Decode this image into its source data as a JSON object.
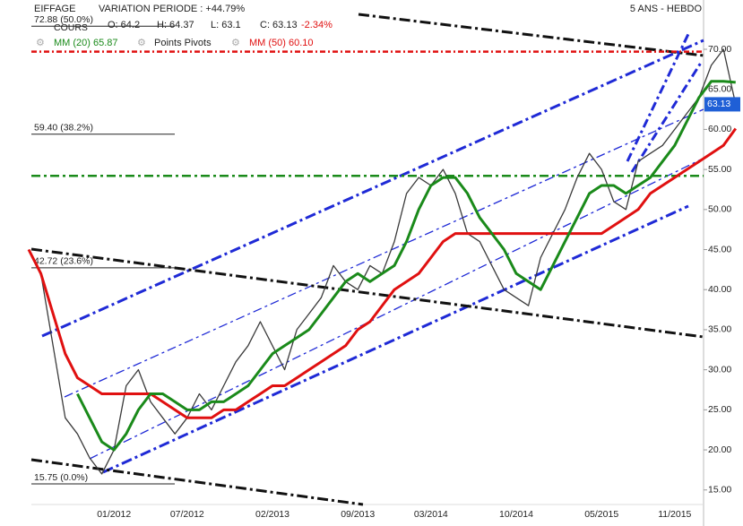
{
  "chart_data": {
    "type": "line",
    "title": "EIFFAGE",
    "subtitle": "VARIATION PERIODE : +44.79%",
    "period": "5 ANS - HEBDO",
    "ohlc": [
      "O: 64.2",
      "H: 64.37",
      "L: 63.1",
      "C: 63.13"
    ],
    "change": "-2.34%",
    "pivot_label": "Points Pivots",
    "last_price": 63.13,
    "categories": [
      null,
      null,
      null,
      null,
      null,
      null,
      null,
      "01/2012",
      null,
      null,
      null,
      null,
      null,
      "07/2012",
      null,
      null,
      null,
      null,
      null,
      null,
      "02/2013",
      null,
      null,
      null,
      null,
      null,
      null,
      "09/2013",
      null,
      null,
      null,
      null,
      null,
      "03/2014",
      null,
      null,
      null,
      null,
      null,
      null,
      "10/2014",
      null,
      null,
      null,
      null,
      null,
      null,
      "05/2015",
      null,
      null,
      null,
      null,
      null,
      "11/2015",
      null,
      null,
      null,
      null,
      null
    ],
    "series": [
      {
        "name": "COURS",
        "color": "#3a3a3a",
        "values": [
          45,
          42,
          33,
          24,
          22,
          19,
          17,
          20,
          28,
          30,
          26,
          24,
          22,
          24,
          27,
          25,
          28,
          31,
          33,
          36,
          33,
          30,
          35,
          37,
          39,
          43,
          41,
          40,
          43,
          42,
          46,
          52,
          54,
          53,
          55,
          52,
          47,
          46,
          43,
          40,
          39,
          38,
          44,
          47,
          50,
          54,
          57,
          55,
          51,
          50,
          56,
          57,
          58,
          60,
          62,
          64,
          68,
          70,
          63.13
        ]
      },
      {
        "name": "MM (20) 65.87",
        "color": "#1a8a1a",
        "values": [
          null,
          null,
          null,
          null,
          27,
          24,
          21,
          20,
          22,
          25,
          27,
          27,
          26,
          25,
          25,
          26,
          26,
          27,
          28,
          30,
          32,
          33,
          34,
          35,
          37,
          39,
          41,
          42,
          41,
          42,
          43,
          46,
          50,
          53,
          54,
          54,
          52,
          49,
          47,
          45,
          42,
          41,
          40,
          43,
          46,
          49,
          52,
          53,
          53,
          52,
          53,
          54,
          56,
          58,
          61,
          64,
          66,
          66,
          65.87
        ]
      },
      {
        "name": "MM (50) 60.10",
        "color": "#e01010",
        "values": [
          45,
          42,
          37,
          32,
          29,
          28,
          27,
          27,
          27,
          27,
          27,
          26,
          25,
          24,
          24,
          24,
          25,
          25,
          26,
          27,
          28,
          28,
          29,
          30,
          31,
          32,
          33,
          35,
          36,
          38,
          40,
          41,
          42,
          44,
          46,
          47,
          47,
          47,
          47,
          47,
          47,
          47,
          47,
          47,
          47,
          47,
          47,
          47,
          48,
          49,
          50,
          52,
          53,
          54,
          55,
          56,
          57,
          58,
          60.1
        ]
      }
    ],
    "fibonacci": [
      {
        "value": 72.88,
        "label": "72.88 (50.0%)"
      },
      {
        "value": 59.4,
        "label": "59.40 (38.2%)"
      },
      {
        "value": 42.72,
        "label": "42.72 (23.6%)"
      },
      {
        "value": 15.75,
        "label": "15.75 (0.0%)"
      }
    ],
    "support": 54.2,
    "resistance": 69.7,
    "ylim": [
      10.5,
      76.15
    ],
    "yticks": [
      {
        "value": 15,
        "label": "15.00"
      },
      {
        "value": 20,
        "label": "20.00"
      },
      {
        "value": 25,
        "label": "25.00"
      },
      {
        "value": 30,
        "label": "30.00"
      },
      {
        "value": 35,
        "label": "35.00"
      },
      {
        "value": 40,
        "label": "40.00"
      },
      {
        "value": 45,
        "label": "45.00"
      },
      {
        "value": 50,
        "label": "50.00"
      },
      {
        "value": 55,
        "label": "55.00"
      },
      {
        "value": 60,
        "label": "60.00"
      },
      {
        "value": 65,
        "label": "65.00"
      },
      {
        "value": 70,
        "label": "70.00"
      }
    ]
  }
}
